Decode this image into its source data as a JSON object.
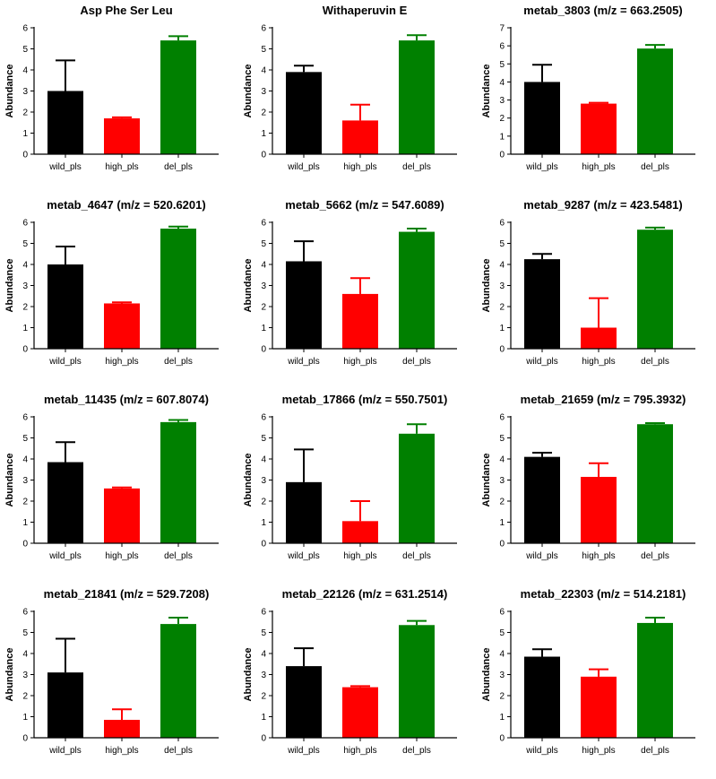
{
  "figure": {
    "colors": {
      "wild_pls": "#000000",
      "high_pls": "#ff0000",
      "del_pls": "#008000",
      "axis": "#000000"
    }
  },
  "chart_data": [
    {
      "type": "bar",
      "title": "Asp Phe Ser Leu",
      "ylabel": "Abundance",
      "categories": [
        "wild_pls",
        "high_pls",
        "del_pls"
      ],
      "values": [
        3.0,
        1.7,
        5.4
      ],
      "errors": [
        1.45,
        0.05,
        0.2
      ],
      "ylim": [
        0,
        6
      ],
      "yticks": [
        "0",
        "1",
        "2",
        "3",
        "4",
        "5",
        "6"
      ]
    },
    {
      "type": "bar",
      "title": "Withaperuvin E",
      "ylabel": "Abundance",
      "categories": [
        "wild_pls",
        "high_pls",
        "del_pls"
      ],
      "values": [
        3.9,
        1.6,
        5.4
      ],
      "errors": [
        0.3,
        0.75,
        0.25
      ],
      "ylim": [
        0,
        6
      ],
      "yticks": [
        "0",
        "1",
        "2",
        "3",
        "4",
        "5",
        "6"
      ]
    },
    {
      "type": "bar",
      "title": "metab_3803 (m/z = 663.2505)",
      "ylabel": "Abundance",
      "categories": [
        "wild_pls",
        "high_pls",
        "del_pls"
      ],
      "values": [
        4.0,
        2.8,
        5.85
      ],
      "errors": [
        0.95,
        0.05,
        0.2
      ],
      "ylim": [
        0,
        7
      ],
      "yticks": [
        "0",
        "1",
        "2",
        "3",
        "4",
        "5",
        "6",
        "7"
      ]
    },
    {
      "type": "bar",
      "title": "metab_4647 (m/z = 520.6201)",
      "ylabel": "Abundance",
      "categories": [
        "wild_pls",
        "high_pls",
        "del_pls"
      ],
      "values": [
        4.0,
        2.15,
        5.7
      ],
      "errors": [
        0.85,
        0.05,
        0.1
      ],
      "ylim": [
        0,
        6
      ],
      "yticks": [
        "0",
        "1",
        "2",
        "3",
        "4",
        "5",
        "6"
      ]
    },
    {
      "type": "bar",
      "title": "metab_5662 (m/z = 547.6089)",
      "ylabel": "Abundance",
      "categories": [
        "wild_pls",
        "high_pls",
        "del_pls"
      ],
      "values": [
        4.15,
        2.6,
        5.55
      ],
      "errors": [
        0.95,
        0.75,
        0.15
      ],
      "ylim": [
        0,
        6
      ],
      "yticks": [
        "0",
        "1",
        "2",
        "3",
        "4",
        "5",
        "6"
      ]
    },
    {
      "type": "bar",
      "title": "metab_9287 (m/z = 423.5481)",
      "ylabel": "Abundance",
      "categories": [
        "wild_pls",
        "high_pls",
        "del_pls"
      ],
      "values": [
        4.25,
        1.0,
        5.65
      ],
      "errors": [
        0.25,
        1.4,
        0.1
      ],
      "ylim": [
        0,
        6
      ],
      "yticks": [
        "0",
        "1",
        "2",
        "3",
        "4",
        "5",
        "6"
      ]
    },
    {
      "type": "bar",
      "title": "metab_11435 (m/z = 607.8074)",
      "ylabel": "Abundance",
      "categories": [
        "wild_pls",
        "high_pls",
        "del_pls"
      ],
      "values": [
        3.85,
        2.6,
        5.75
      ],
      "errors": [
        0.95,
        0.05,
        0.1
      ],
      "ylim": [
        0,
        6
      ],
      "yticks": [
        "0",
        "1",
        "2",
        "3",
        "4",
        "5",
        "6"
      ]
    },
    {
      "type": "bar",
      "title": "metab_17866 (m/z = 550.7501)",
      "ylabel": "Abundance",
      "categories": [
        "wild_pls",
        "high_pls",
        "del_pls"
      ],
      "values": [
        2.9,
        1.05,
        5.2
      ],
      "errors": [
        1.55,
        0.95,
        0.45
      ],
      "ylim": [
        0,
        6
      ],
      "yticks": [
        "0",
        "1",
        "2",
        "3",
        "4",
        "5",
        "6"
      ]
    },
    {
      "type": "bar",
      "title": "metab_21659 (m/z = 795.3932)",
      "ylabel": "Abundance",
      "categories": [
        "wild_pls",
        "high_pls",
        "del_pls"
      ],
      "values": [
        4.1,
        3.15,
        5.65
      ],
      "errors": [
        0.2,
        0.65,
        0.05
      ],
      "ylim": [
        0,
        6
      ],
      "yticks": [
        "0",
        "1",
        "2",
        "3",
        "4",
        "5",
        "6"
      ]
    },
    {
      "type": "bar",
      "title": "metab_21841 (m/z = 529.7208)",
      "ylabel": "Abundance",
      "categories": [
        "wild_pls",
        "high_pls",
        "del_pls"
      ],
      "values": [
        3.1,
        0.85,
        5.4
      ],
      "errors": [
        1.6,
        0.5,
        0.3
      ],
      "ylim": [
        0,
        6
      ],
      "yticks": [
        "0",
        "1",
        "2",
        "3",
        "4",
        "5",
        "6"
      ]
    },
    {
      "type": "bar",
      "title": "metab_22126 (m/z = 631.2514)",
      "ylabel": "Abundance",
      "categories": [
        "wild_pls",
        "high_pls",
        "del_pls"
      ],
      "values": [
        3.4,
        2.4,
        5.35
      ],
      "errors": [
        0.85,
        0.05,
        0.2
      ],
      "ylim": [
        0,
        6
      ],
      "yticks": [
        "0",
        "1",
        "2",
        "3",
        "4",
        "5",
        "6"
      ]
    },
    {
      "type": "bar",
      "title": "metab_22303 (m/z = 514.2181)",
      "ylabel": "Abundance",
      "categories": [
        "wild_pls",
        "high_pls",
        "del_pls"
      ],
      "values": [
        3.85,
        2.9,
        5.45
      ],
      "errors": [
        0.35,
        0.35,
        0.25
      ],
      "ylim": [
        0,
        6
      ],
      "yticks": [
        "0",
        "1",
        "2",
        "3",
        "4",
        "5",
        "6"
      ]
    }
  ]
}
